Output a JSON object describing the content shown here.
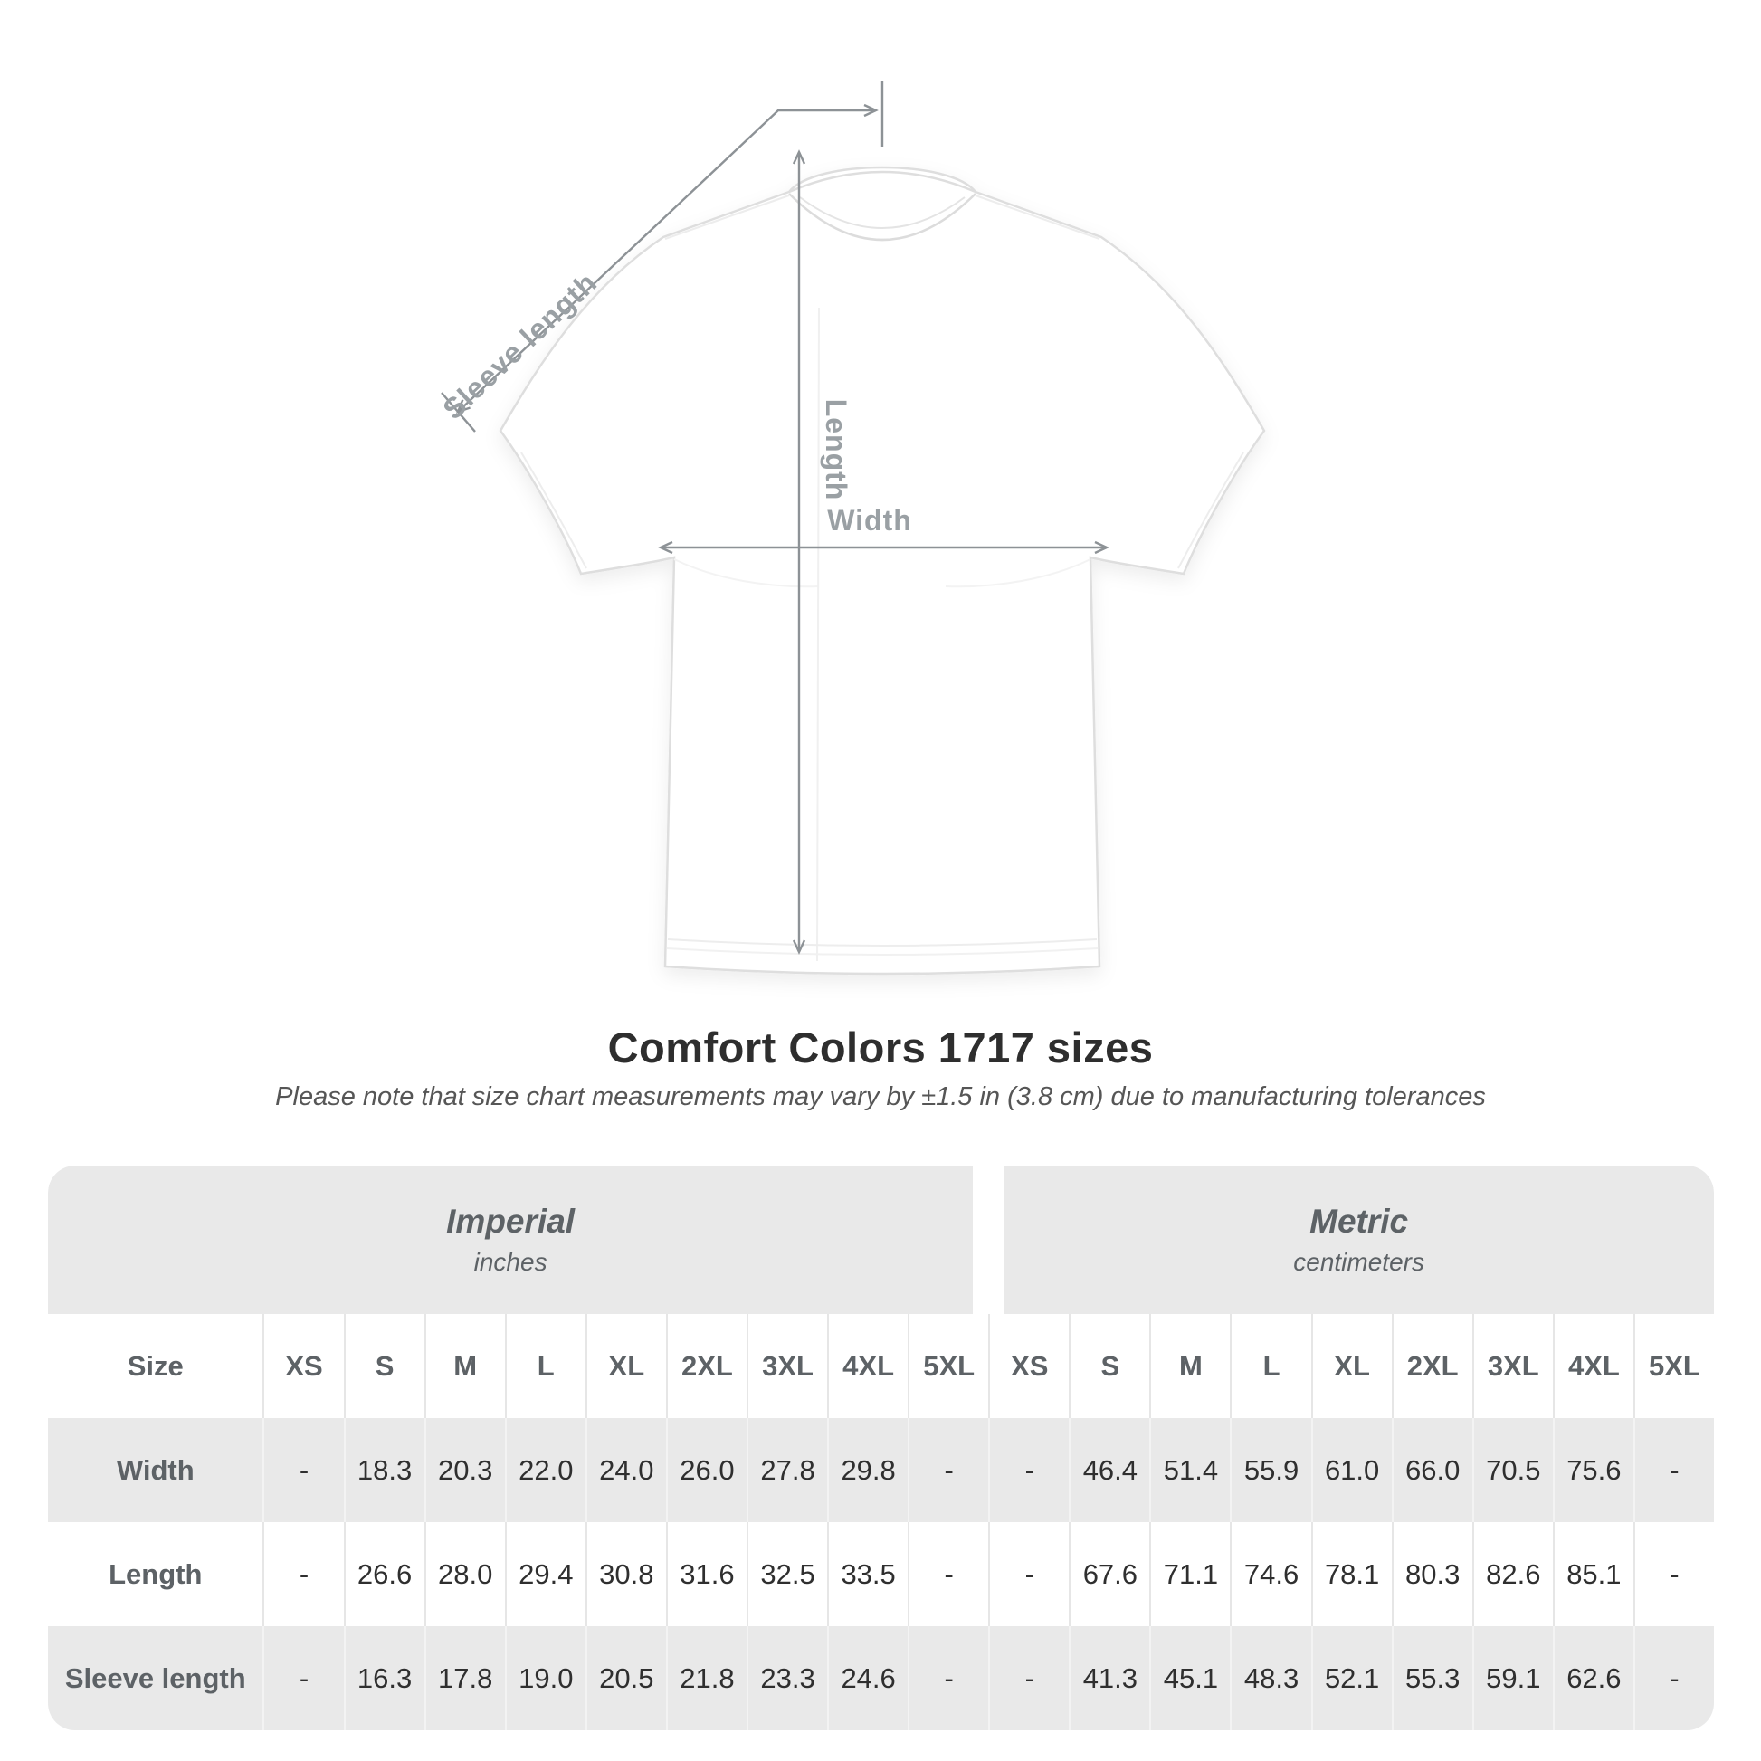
{
  "diagram": {
    "sleeve_label": "Sleeve length",
    "length_label": "Length",
    "width_label": "Width",
    "line_color": "#8d9296",
    "label_color": "#9aa0a4"
  },
  "heading": {
    "title": "Comfort Colors 1717 sizes",
    "subtitle": "Please note that size chart measurements may vary by ±1.5 in (3.8 cm) due to manufacturing tolerances"
  },
  "table": {
    "size_header": "Size",
    "sizes": [
      "XS",
      "S",
      "M",
      "L",
      "XL",
      "2XL",
      "3XL",
      "4XL",
      "5XL"
    ],
    "unit_groups": [
      {
        "name": "Imperial",
        "unit": "inches"
      },
      {
        "name": "Metric",
        "unit": "centimeters"
      }
    ],
    "rows": [
      {
        "label": "Width",
        "imperial": [
          "-",
          "18.3",
          "20.3",
          "22.0",
          "24.0",
          "26.0",
          "27.8",
          "29.8",
          "-"
        ],
        "metric": [
          "-",
          "46.4",
          "51.4",
          "55.9",
          "61.0",
          "66.0",
          "70.5",
          "75.6",
          "-"
        ]
      },
      {
        "label": "Length",
        "imperial": [
          "-",
          "26.6",
          "28.0",
          "29.4",
          "30.8",
          "31.6",
          "32.5",
          "33.5",
          "-"
        ],
        "metric": [
          "-",
          "67.6",
          "71.1",
          "74.6",
          "78.1",
          "80.3",
          "82.6",
          "85.1",
          "-"
        ]
      },
      {
        "label": "Sleeve length",
        "imperial": [
          "-",
          "16.3",
          "17.8",
          "19.0",
          "20.5",
          "21.8",
          "23.3",
          "24.6",
          "-"
        ],
        "metric": [
          "-",
          "41.3",
          "45.1",
          "48.3",
          "52.1",
          "55.3",
          "59.1",
          "62.6",
          "-"
        ]
      }
    ],
    "colors": {
      "band_bg": "#e9e9e9",
      "alt_row_bg": "#e9e9e9",
      "header_text": "#5d6266",
      "value_text": "#2f2f2f"
    }
  }
}
